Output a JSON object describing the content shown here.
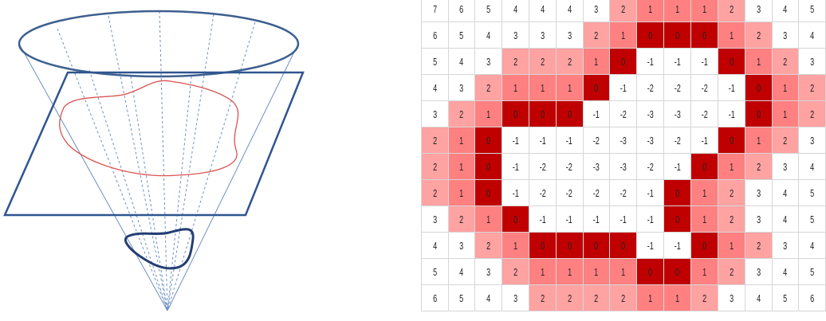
{
  "colors": {
    "ellipse_stroke": "#3d5f8f",
    "plane_stroke": "#2f5590",
    "curve_stroke": "#d9534f",
    "contour_stroke": "#253e74",
    "ray_stroke": "#6d8fc4",
    "zero_fill": "#c00000",
    "one_fill": "#ff8080",
    "two_fill": "#ffa2a2",
    "grid_line": "#d6d6d6"
  },
  "distance_grid": {
    "rows": [
      [
        7,
        6,
        5,
        4,
        4,
        4,
        3,
        2,
        1,
        1,
        1,
        2,
        3,
        4,
        5
      ],
      [
        6,
        5,
        4,
        3,
        3,
        3,
        2,
        1,
        0,
        0,
        0,
        1,
        2,
        3,
        4
      ],
      [
        5,
        4,
        3,
        2,
        2,
        2,
        1,
        0,
        -1,
        -1,
        -1,
        0,
        1,
        2,
        3
      ],
      [
        4,
        3,
        2,
        1,
        1,
        1,
        0,
        -1,
        -2,
        -2,
        -2,
        -1,
        0,
        1,
        2
      ],
      [
        3,
        2,
        1,
        0,
        0,
        0,
        -1,
        -2,
        -3,
        -3,
        -2,
        -1,
        0,
        1,
        2
      ],
      [
        2,
        1,
        0,
        -1,
        -1,
        -1,
        -2,
        -3,
        -3,
        -2,
        -1,
        0,
        1,
        2,
        3
      ],
      [
        2,
        1,
        0,
        -1,
        -2,
        -2,
        -3,
        -3,
        -2,
        -1,
        0,
        1,
        2,
        3,
        4
      ],
      [
        2,
        1,
        0,
        -1,
        -2,
        -2,
        -2,
        -2,
        -1,
        0,
        1,
        2,
        3,
        4,
        5
      ],
      [
        3,
        2,
        1,
        0,
        -1,
        -1,
        -1,
        -1,
        -1,
        0,
        1,
        2,
        3,
        4,
        5
      ],
      [
        4,
        3,
        2,
        1,
        0,
        0,
        0,
        0,
        -1,
        -1,
        0,
        1,
        2,
        3,
        4
      ],
      [
        5,
        4,
        3,
        2,
        1,
        1,
        1,
        1,
        0,
        0,
        1,
        2,
        3,
        4,
        5
      ],
      [
        6,
        5,
        4,
        3,
        2,
        2,
        2,
        2,
        1,
        1,
        2,
        3,
        4,
        5,
        6
      ]
    ]
  }
}
